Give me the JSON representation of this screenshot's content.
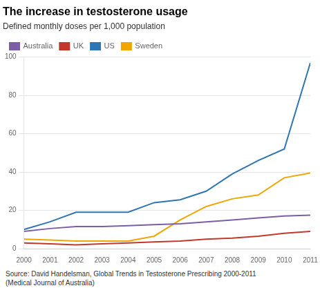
{
  "chart_data": {
    "type": "line",
    "title": "The increase in testosterone usage",
    "subtitle": "Defined monthly doses per 1,000 population",
    "source": "Source: David Handelsman, Global Trends in Testosterone Prescribing 2000-2011\n(Medical Journal of Australia)",
    "x": [
      2000,
      2001,
      2002,
      2003,
      2004,
      2005,
      2006,
      2007,
      2008,
      2009,
      2010,
      2011
    ],
    "series": [
      {
        "name": "Australia",
        "color": "#7B5EA7",
        "values": [
          9,
          10.5,
          11.5,
          11.5,
          12,
          12.5,
          13,
          14,
          15,
          16,
          17,
          17.5
        ]
      },
      {
        "name": "UK",
        "color": "#C0392B",
        "values": [
          3,
          2.5,
          2,
          2.5,
          3,
          3.5,
          4,
          5,
          5.5,
          6.5,
          8,
          9
        ]
      },
      {
        "name": "US",
        "color": "#2E75B6",
        "values": [
          10,
          14,
          19,
          19,
          19,
          24,
          25.5,
          30,
          39,
          46,
          52,
          97
        ]
      },
      {
        "name": "Sweden",
        "color": "#F0A500",
        "values": [
          5,
          4.5,
          4,
          4,
          4,
          6.5,
          15,
          22,
          26,
          28,
          37,
          39.5
        ]
      }
    ],
    "xlim": [
      2000,
      2011
    ],
    "xticks": [
      2000,
      2001,
      2002,
      2003,
      2004,
      2005,
      2006,
      2007,
      2008,
      2009,
      2010,
      2011
    ],
    "ylim": [
      0,
      100
    ],
    "yticks": [
      0,
      20,
      40,
      60,
      80,
      100
    ],
    "grid": "y",
    "legend": "upper left"
  }
}
